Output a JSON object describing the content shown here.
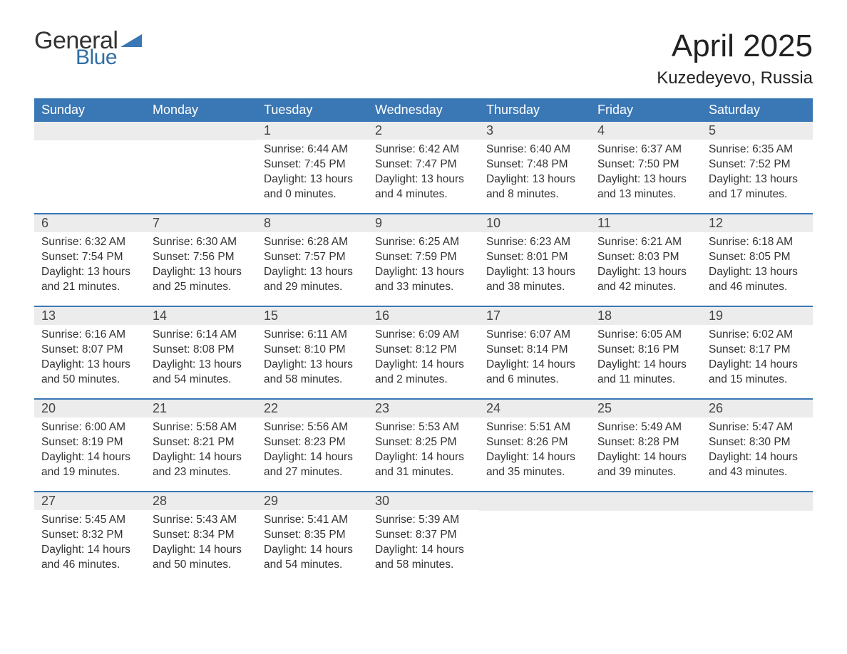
{
  "logo": {
    "text_general": "General",
    "text_blue": "Blue",
    "tri_color": "#3a77b5"
  },
  "header": {
    "month_title": "April 2025",
    "location": "Kuzedeyevo, Russia"
  },
  "colors": {
    "header_bg": "#3a77b5",
    "header_text": "#ffffff",
    "daynum_bg": "#ececec",
    "text": "#333333",
    "page_bg": "#ffffff"
  },
  "layout": {
    "columns": 7,
    "rows": 5,
    "start_day_index": 2
  },
  "weekdays": [
    "Sunday",
    "Monday",
    "Tuesday",
    "Wednesday",
    "Thursday",
    "Friday",
    "Saturday"
  ],
  "days": [
    {
      "n": 1,
      "sunrise": "6:44 AM",
      "sunset": "7:45 PM",
      "daylight": "13 hours and 0 minutes."
    },
    {
      "n": 2,
      "sunrise": "6:42 AM",
      "sunset": "7:47 PM",
      "daylight": "13 hours and 4 minutes."
    },
    {
      "n": 3,
      "sunrise": "6:40 AM",
      "sunset": "7:48 PM",
      "daylight": "13 hours and 8 minutes."
    },
    {
      "n": 4,
      "sunrise": "6:37 AM",
      "sunset": "7:50 PM",
      "daylight": "13 hours and 13 minutes."
    },
    {
      "n": 5,
      "sunrise": "6:35 AM",
      "sunset": "7:52 PM",
      "daylight": "13 hours and 17 minutes."
    },
    {
      "n": 6,
      "sunrise": "6:32 AM",
      "sunset": "7:54 PM",
      "daylight": "13 hours and 21 minutes."
    },
    {
      "n": 7,
      "sunrise": "6:30 AM",
      "sunset": "7:56 PM",
      "daylight": "13 hours and 25 minutes."
    },
    {
      "n": 8,
      "sunrise": "6:28 AM",
      "sunset": "7:57 PM",
      "daylight": "13 hours and 29 minutes."
    },
    {
      "n": 9,
      "sunrise": "6:25 AM",
      "sunset": "7:59 PM",
      "daylight": "13 hours and 33 minutes."
    },
    {
      "n": 10,
      "sunrise": "6:23 AM",
      "sunset": "8:01 PM",
      "daylight": "13 hours and 38 minutes."
    },
    {
      "n": 11,
      "sunrise": "6:21 AM",
      "sunset": "8:03 PM",
      "daylight": "13 hours and 42 minutes."
    },
    {
      "n": 12,
      "sunrise": "6:18 AM",
      "sunset": "8:05 PM",
      "daylight": "13 hours and 46 minutes."
    },
    {
      "n": 13,
      "sunrise": "6:16 AM",
      "sunset": "8:07 PM",
      "daylight": "13 hours and 50 minutes."
    },
    {
      "n": 14,
      "sunrise": "6:14 AM",
      "sunset": "8:08 PM",
      "daylight": "13 hours and 54 minutes."
    },
    {
      "n": 15,
      "sunrise": "6:11 AM",
      "sunset": "8:10 PM",
      "daylight": "13 hours and 58 minutes."
    },
    {
      "n": 16,
      "sunrise": "6:09 AM",
      "sunset": "8:12 PM",
      "daylight": "14 hours and 2 minutes."
    },
    {
      "n": 17,
      "sunrise": "6:07 AM",
      "sunset": "8:14 PM",
      "daylight": "14 hours and 6 minutes."
    },
    {
      "n": 18,
      "sunrise": "6:05 AM",
      "sunset": "8:16 PM",
      "daylight": "14 hours and 11 minutes."
    },
    {
      "n": 19,
      "sunrise": "6:02 AM",
      "sunset": "8:17 PM",
      "daylight": "14 hours and 15 minutes."
    },
    {
      "n": 20,
      "sunrise": "6:00 AM",
      "sunset": "8:19 PM",
      "daylight": "14 hours and 19 minutes."
    },
    {
      "n": 21,
      "sunrise": "5:58 AM",
      "sunset": "8:21 PM",
      "daylight": "14 hours and 23 minutes."
    },
    {
      "n": 22,
      "sunrise": "5:56 AM",
      "sunset": "8:23 PM",
      "daylight": "14 hours and 27 minutes."
    },
    {
      "n": 23,
      "sunrise": "5:53 AM",
      "sunset": "8:25 PM",
      "daylight": "14 hours and 31 minutes."
    },
    {
      "n": 24,
      "sunrise": "5:51 AM",
      "sunset": "8:26 PM",
      "daylight": "14 hours and 35 minutes."
    },
    {
      "n": 25,
      "sunrise": "5:49 AM",
      "sunset": "8:28 PM",
      "daylight": "14 hours and 39 minutes."
    },
    {
      "n": 26,
      "sunrise": "5:47 AM",
      "sunset": "8:30 PM",
      "daylight": "14 hours and 43 minutes."
    },
    {
      "n": 27,
      "sunrise": "5:45 AM",
      "sunset": "8:32 PM",
      "daylight": "14 hours and 46 minutes."
    },
    {
      "n": 28,
      "sunrise": "5:43 AM",
      "sunset": "8:34 PM",
      "daylight": "14 hours and 50 minutes."
    },
    {
      "n": 29,
      "sunrise": "5:41 AM",
      "sunset": "8:35 PM",
      "daylight": "14 hours and 54 minutes."
    },
    {
      "n": 30,
      "sunrise": "5:39 AM",
      "sunset": "8:37 PM",
      "daylight": "14 hours and 58 minutes."
    }
  ],
  "labels": {
    "sunrise": "Sunrise:",
    "sunset": "Sunset:",
    "daylight": "Daylight:"
  }
}
